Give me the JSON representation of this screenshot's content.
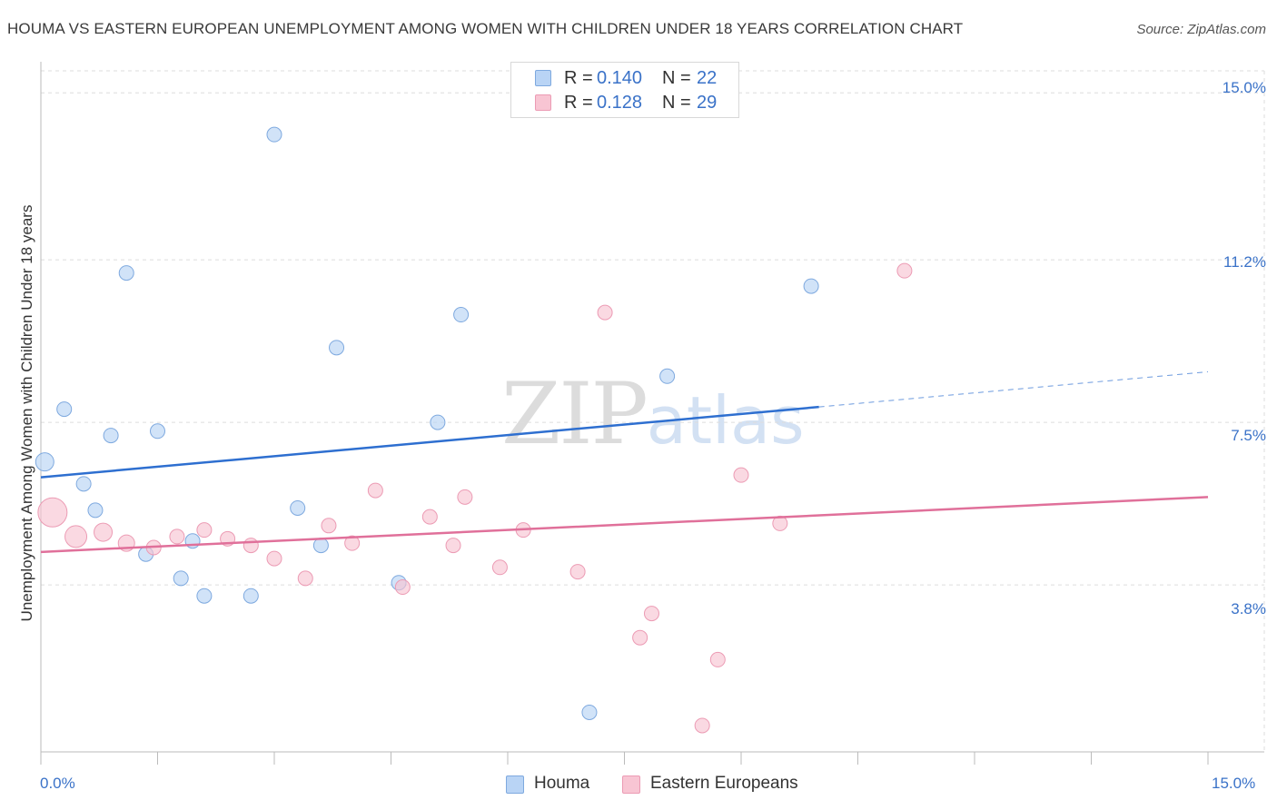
{
  "title": "HOUMA VS EASTERN EUROPEAN UNEMPLOYMENT AMONG WOMEN WITH CHILDREN UNDER 18 YEARS CORRELATION CHART",
  "source": "Source: ZipAtlas.com",
  "watermark": {
    "zip": "ZIP",
    "atlas": "atlas"
  },
  "colors": {
    "houma_fill": "#b9d4f5",
    "houma_stroke": "#7ea9df",
    "houma_line": "#2e6fd0",
    "ee_fill": "#f8c5d3",
    "ee_stroke": "#ec9bb4",
    "ee_line": "#e0709a",
    "grid": "#dddddd",
    "tick_text": "#3a72c8"
  },
  "legend_top": [
    {
      "r_label": "R =",
      "r_value": "0.140",
      "n_label": "N =",
      "n_value": "22"
    },
    {
      "r_label": "R =",
      "r_value": "0.128",
      "n_label": "N =",
      "n_value": "29"
    }
  ],
  "legend_bottom": [
    "Houma",
    "Eastern Europeans"
  ],
  "chart_data": {
    "type": "scatter",
    "title": "HOUMA VS EASTERN EUROPEAN UNEMPLOYMENT AMONG WOMEN WITH CHILDREN UNDER 18 YEARS CORRELATION CHART",
    "xlabel": "",
    "ylabel": "Unemployment Among Women with Children Under 18 years",
    "xlim": [
      0,
      15
    ],
    "ylim": [
      0,
      15.5
    ],
    "x_tick_labels": [
      "0.0%",
      "15.0%"
    ],
    "y_ticks": [
      3.8,
      7.5,
      11.2,
      15.0
    ],
    "y_tick_labels": [
      "3.8%",
      "7.5%",
      "11.2%",
      "15.0%"
    ],
    "grid": true,
    "legend_placement": "top-center and bottom",
    "series": [
      {
        "name": "Houma",
        "r": 0.14,
        "n": 22,
        "trend": {
          "x0": 0,
          "y0": 6.25,
          "x1": 10.0,
          "y1": 7.85,
          "dashed_to_x": 15,
          "dashed_to_y": 8.65
        },
        "points": [
          {
            "x": 0.05,
            "y": 6.6,
            "s": 10
          },
          {
            "x": 0.3,
            "y": 7.8,
            "s": 8
          },
          {
            "x": 0.55,
            "y": 6.1,
            "s": 8
          },
          {
            "x": 0.7,
            "y": 5.5,
            "s": 8
          },
          {
            "x": 0.9,
            "y": 7.2,
            "s": 8
          },
          {
            "x": 1.1,
            "y": 10.9,
            "s": 8
          },
          {
            "x": 1.35,
            "y": 4.5,
            "s": 8
          },
          {
            "x": 1.5,
            "y": 7.3,
            "s": 8
          },
          {
            "x": 1.8,
            "y": 3.95,
            "s": 8
          },
          {
            "x": 1.95,
            "y": 4.8,
            "s": 8
          },
          {
            "x": 2.1,
            "y": 3.55,
            "s": 8
          },
          {
            "x": 2.7,
            "y": 3.55,
            "s": 8
          },
          {
            "x": 3.0,
            "y": 14.05,
            "s": 8
          },
          {
            "x": 3.3,
            "y": 5.55,
            "s": 8
          },
          {
            "x": 3.6,
            "y": 4.7,
            "s": 8
          },
          {
            "x": 3.8,
            "y": 9.2,
            "s": 8
          },
          {
            "x": 4.6,
            "y": 3.85,
            "s": 8
          },
          {
            "x": 5.1,
            "y": 7.5,
            "s": 8
          },
          {
            "x": 5.4,
            "y": 9.95,
            "s": 8
          },
          {
            "x": 7.05,
            "y": 0.9,
            "s": 8
          },
          {
            "x": 8.05,
            "y": 8.55,
            "s": 8
          },
          {
            "x": 9.9,
            "y": 10.6,
            "s": 8
          }
        ]
      },
      {
        "name": "Eastern Europeans",
        "r": 0.128,
        "n": 29,
        "trend": {
          "x0": 0,
          "y0": 4.55,
          "x1": 15,
          "y1": 5.8
        },
        "points": [
          {
            "x": 0.15,
            "y": 5.45,
            "s": 16
          },
          {
            "x": 0.45,
            "y": 4.9,
            "s": 12
          },
          {
            "x": 0.8,
            "y": 5.0,
            "s": 10
          },
          {
            "x": 1.1,
            "y": 4.75,
            "s": 9
          },
          {
            "x": 1.45,
            "y": 4.65,
            "s": 8
          },
          {
            "x": 1.75,
            "y": 4.9,
            "s": 8
          },
          {
            "x": 2.1,
            "y": 5.05,
            "s": 8
          },
          {
            "x": 2.4,
            "y": 4.85,
            "s": 8
          },
          {
            "x": 2.7,
            "y": 4.7,
            "s": 8
          },
          {
            "x": 3.0,
            "y": 4.4,
            "s": 8
          },
          {
            "x": 3.4,
            "y": 3.95,
            "s": 8
          },
          {
            "x": 3.7,
            "y": 5.15,
            "s": 8
          },
          {
            "x": 4.0,
            "y": 4.75,
            "s": 8
          },
          {
            "x": 4.3,
            "y": 5.95,
            "s": 8
          },
          {
            "x": 4.65,
            "y": 3.75,
            "s": 8
          },
          {
            "x": 5.0,
            "y": 5.35,
            "s": 8
          },
          {
            "x": 5.3,
            "y": 4.7,
            "s": 8
          },
          {
            "x": 5.45,
            "y": 5.8,
            "s": 8
          },
          {
            "x": 5.9,
            "y": 4.2,
            "s": 8
          },
          {
            "x": 6.2,
            "y": 5.05,
            "s": 8
          },
          {
            "x": 6.9,
            "y": 4.1,
            "s": 8
          },
          {
            "x": 7.25,
            "y": 10.0,
            "s": 8
          },
          {
            "x": 7.7,
            "y": 2.6,
            "s": 8
          },
          {
            "x": 7.85,
            "y": 3.15,
            "s": 8
          },
          {
            "x": 8.5,
            "y": 0.6,
            "s": 8
          },
          {
            "x": 8.7,
            "y": 2.1,
            "s": 8
          },
          {
            "x": 9.0,
            "y": 6.3,
            "s": 8
          },
          {
            "x": 9.5,
            "y": 5.2,
            "s": 8
          },
          {
            "x": 11.1,
            "y": 10.95,
            "s": 8
          }
        ]
      }
    ]
  }
}
